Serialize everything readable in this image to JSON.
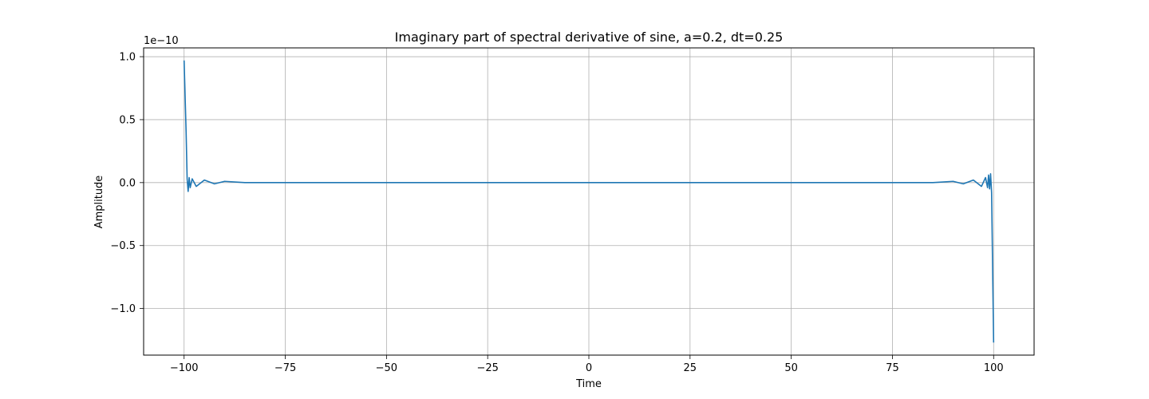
{
  "chart_data": {
    "type": "line",
    "title": "Imaginary part of spectral derivative of sine, a=0.2, dt=0.25",
    "xlabel": "Time",
    "ylabel": "Amplitude",
    "y_offset_label": "1e−10",
    "y_multiplier": 1e-10,
    "xlim": [
      -110,
      110
    ],
    "ylim": [
      -1.37,
      1.07
    ],
    "x_ticks": [
      -100,
      -75,
      -50,
      -25,
      0,
      25,
      50,
      75,
      100
    ],
    "x_tick_labels": [
      "−100",
      "−75",
      "−50",
      "−25",
      "0",
      "25",
      "50",
      "75",
      "100"
    ],
    "y_ticks": [
      -1.0,
      -0.5,
      0.0,
      0.5,
      1.0
    ],
    "y_tick_labels": [
      "−1.0",
      "−0.5",
      "0.0",
      "0.5",
      "1.0"
    ],
    "grid": true,
    "line_color": "#1f77b4",
    "series": [
      {
        "x": [
          -100.0,
          -99.5,
          -99.25,
          -99.0,
          -98.75,
          -98.5,
          -98.0,
          -97.0,
          -95.0,
          -92.5,
          -90.0,
          -85.0,
          -75.0,
          -50.0,
          -25.0,
          0.0,
          25.0,
          50.0,
          75.0,
          85.0,
          90.0,
          92.5,
          95.0,
          97.0,
          98.0,
          98.5,
          98.75,
          99.0,
          99.25,
          99.5,
          100.0
        ],
        "y": [
          0.97,
          0.4,
          0.03,
          -0.07,
          0.04,
          -0.04,
          0.03,
          -0.03,
          0.02,
          -0.01,
          0.01,
          0.0,
          0.0,
          0.0,
          0.0,
          0.0,
          0.0,
          0.0,
          0.0,
          0.0,
          0.01,
          -0.01,
          0.02,
          -0.03,
          0.04,
          -0.04,
          0.06,
          -0.05,
          0.07,
          -0.08,
          -1.27
        ]
      }
    ]
  }
}
